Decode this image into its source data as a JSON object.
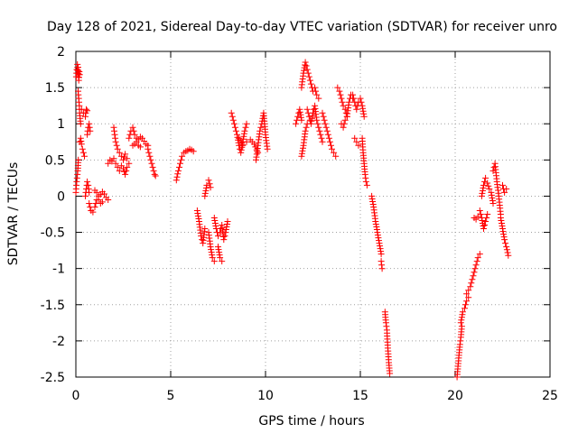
{
  "chart_data": {
    "type": "scatter",
    "title": "Day 128 of 2021, Sidereal Day-to-day VTEC variation (SDTVAR) for receiver unro",
    "xlabel": "GPS time / hours",
    "ylabel": "SDTVAR / TECUs",
    "xlim": [
      0,
      25
    ],
    "ylim": [
      -2.5,
      2
    ],
    "xticks": [
      "0",
      "5",
      "10",
      "15",
      "20",
      "25"
    ],
    "yticks": [
      "2",
      "1.5",
      "1",
      "0.5",
      "0",
      "-0.5",
      "-1",
      "-1.5",
      "-2",
      "-2.5"
    ],
    "grid": true,
    "marker": "+",
    "color": "#ff0000",
    "series": [
      {
        "name": "SDTVAR",
        "segments": [
          {
            "x": [
              0.02,
              0.05,
              0.08,
              0.1,
              0.12,
              0.15,
              0.18,
              0.2
            ],
            "y": [
              1.65,
              1.75,
              1.82,
              1.7,
              1.78,
              1.6,
              1.72,
              1.68
            ]
          },
          {
            "x": [
              0.0,
              0.03,
              0.06,
              0.1,
              0.13
            ],
            "y": [
              0.05,
              0.15,
              0.25,
              0.35,
              0.5
            ]
          },
          {
            "x": [
              0.12,
              0.15,
              0.18,
              0.2,
              0.25
            ],
            "y": [
              1.45,
              1.35,
              1.25,
              1.15,
              1.0
            ]
          },
          {
            "x": [
              0.2,
              0.25,
              0.3,
              0.35,
              0.4,
              0.45
            ],
            "y": [
              0.75,
              0.8,
              0.72,
              0.65,
              0.6,
              0.55
            ]
          },
          {
            "x": [
              0.3,
              0.4,
              0.5,
              0.55,
              0.6
            ],
            "y": [
              1.2,
              1.15,
              1.1,
              1.2,
              1.18
            ]
          },
          {
            "x": [
              0.5,
              0.55,
              0.6,
              0.65,
              0.7
            ],
            "y": [
              0.0,
              0.1,
              0.2,
              0.15,
              0.05
            ]
          },
          {
            "x": [
              0.6,
              0.65,
              0.7,
              0.75
            ],
            "y": [
              0.85,
              0.95,
              1.0,
              0.9
            ]
          },
          {
            "x": [
              0.7,
              0.8,
              0.9,
              1.0,
              1.1
            ],
            "y": [
              -0.1,
              -0.2,
              -0.22,
              -0.15,
              -0.05
            ]
          },
          {
            "x": [
              1.0,
              1.1,
              1.2,
              1.3,
              1.4,
              1.5,
              1.6,
              1.7
            ],
            "y": [
              0.08,
              0.05,
              0.0,
              0.02,
              0.06,
              0.03,
              -0.02,
              -0.05
            ]
          },
          {
            "x": [
              1.2,
              1.3,
              1.4
            ],
            "y": [
              -0.05,
              -0.1,
              -0.08
            ]
          },
          {
            "x": [
              1.7,
              1.8,
              1.9,
              2.0
            ],
            "y": [
              0.45,
              0.5,
              0.48,
              0.52
            ]
          },
          {
            "x": [
              2.0,
              2.05,
              2.1,
              2.15,
              2.2
            ],
            "y": [
              0.95,
              0.85,
              0.75,
              0.7,
              0.65
            ]
          },
          {
            "x": [
              2.1,
              2.2,
              2.3,
              2.4,
              2.5,
              2.6,
              2.7,
              2.8
            ],
            "y": [
              0.45,
              0.4,
              0.35,
              0.42,
              0.38,
              0.3,
              0.4,
              0.45
            ]
          },
          {
            "x": [
              2.3,
              2.4,
              2.5,
              2.6,
              2.7
            ],
            "y": [
              0.6,
              0.55,
              0.5,
              0.58,
              0.52
            ]
          },
          {
            "x": [
              2.8,
              2.9,
              3.0,
              3.1,
              3.2,
              3.3,
              3.4,
              3.5,
              3.6,
              3.7,
              3.8
            ],
            "y": [
              0.8,
              0.9,
              0.95,
              0.85,
              0.8,
              0.78,
              0.82,
              0.8,
              0.76,
              0.72,
              0.7
            ]
          },
          {
            "x": [
              3.0,
              3.1,
              3.2,
              3.3,
              3.4
            ],
            "y": [
              0.7,
              0.72,
              0.75,
              0.7,
              0.68
            ]
          },
          {
            "x": [
              3.8,
              3.85,
              3.9,
              3.95,
              4.0,
              4.05,
              4.1,
              4.15,
              4.2
            ],
            "y": [
              0.65,
              0.6,
              0.55,
              0.5,
              0.45,
              0.4,
              0.35,
              0.3,
              0.28
            ]
          },
          {
            "x": [
              5.3,
              5.4,
              5.5,
              5.6,
              5.7,
              5.8,
              5.9,
              6.0,
              6.1,
              6.2
            ],
            "y": [
              0.22,
              0.35,
              0.45,
              0.55,
              0.6,
              0.62,
              0.63,
              0.65,
              0.64,
              0.62
            ]
          },
          {
            "x": [
              6.4,
              6.5,
              6.6,
              6.7,
              6.8
            ],
            "y": [
              -0.2,
              -0.35,
              -0.55,
              -0.65,
              -0.45
            ]
          },
          {
            "x": [
              6.8,
              6.9,
              7.0,
              7.1
            ],
            "y": [
              0.0,
              0.15,
              0.22,
              0.12
            ]
          },
          {
            "x": [
              7.0,
              7.1,
              7.2,
              7.3
            ],
            "y": [
              -0.5,
              -0.7,
              -0.85,
              -0.9
            ]
          },
          {
            "x": [
              7.3,
              7.4,
              7.5,
              7.6,
              7.7,
              7.8,
              7.9,
              8.0
            ],
            "y": [
              -0.3,
              -0.45,
              -0.55,
              -0.5,
              -0.4,
              -0.6,
              -0.5,
              -0.35
            ]
          },
          {
            "x": [
              7.5,
              7.6,
              7.7
            ],
            "y": [
              -0.7,
              -0.85,
              -0.9
            ]
          },
          {
            "x": [
              8.2,
              8.3,
              8.4,
              8.5,
              8.6,
              8.7,
              8.8,
              8.9,
              9.0
            ],
            "y": [
              1.15,
              1.05,
              0.95,
              0.85,
              0.7,
              0.6,
              0.75,
              0.9,
              1.0
            ]
          },
          {
            "x": [
              8.6,
              8.8,
              9.0,
              9.2,
              9.4,
              9.6
            ],
            "y": [
              0.8,
              0.7,
              0.75,
              0.78,
              0.72,
              0.6
            ]
          },
          {
            "x": [
              9.5,
              9.6,
              9.7,
              9.8,
              9.9,
              10.0,
              10.1
            ],
            "y": [
              0.5,
              0.7,
              0.9,
              1.0,
              1.15,
              0.85,
              0.65
            ]
          },
          {
            "x": [
              11.6,
              11.7,
              11.8,
              11.9
            ],
            "y": [
              1.0,
              1.1,
              1.2,
              1.05
            ]
          },
          {
            "x": [
              11.9,
              12.0,
              12.1,
              12.2,
              12.3,
              12.4,
              12.5,
              12.6,
              12.7,
              12.8
            ],
            "y": [
              1.5,
              1.7,
              1.85,
              1.75,
              1.65,
              1.55,
              1.45,
              1.5,
              1.4,
              1.35
            ]
          },
          {
            "x": [
              12.2,
              12.3,
              12.4,
              12.5,
              12.6,
              12.7,
              12.8,
              12.9,
              13.0
            ],
            "y": [
              1.2,
              1.1,
              1.0,
              1.15,
              1.25,
              1.05,
              0.95,
              0.85,
              0.75
            ]
          },
          {
            "x": [
              11.9,
              12.0,
              12.1,
              12.2
            ],
            "y": [
              0.55,
              0.7,
              0.9,
              1.0
            ]
          },
          {
            "x": [
              13.0,
              13.1,
              13.2,
              13.3,
              13.4,
              13.5,
              13.6,
              13.7
            ],
            "y": [
              1.15,
              1.05,
              0.95,
              0.85,
              0.75,
              0.65,
              0.6,
              0.55
            ]
          },
          {
            "x": [
              13.8,
              13.9,
              14.0,
              14.1,
              14.2,
              14.3,
              14.4,
              14.5,
              14.6
            ],
            "y": [
              1.5,
              1.45,
              1.35,
              1.25,
              1.2,
              1.1,
              1.3,
              1.4,
              1.35
            ]
          },
          {
            "x": [
              14.0,
              14.1,
              14.2,
              14.3
            ],
            "y": [
              1.0,
              0.95,
              1.05,
              1.1
            ]
          },
          {
            "x": [
              14.6,
              14.7,
              14.8,
              14.9,
              15.0,
              15.1,
              15.2
            ],
            "y": [
              1.4,
              1.3,
              1.2,
              1.3,
              1.35,
              1.25,
              1.1
            ]
          },
          {
            "x": [
              14.7,
              14.8,
              14.9
            ],
            "y": [
              0.8,
              0.75,
              0.7
            ]
          },
          {
            "x": [
              15.1,
              15.15,
              15.2,
              15.25,
              15.3,
              15.35
            ],
            "y": [
              0.8,
              0.6,
              0.45,
              0.3,
              0.2,
              0.15
            ]
          },
          {
            "x": [
              15.6,
              15.7,
              15.8,
              15.9,
              16.0,
              16.1
            ],
            "y": [
              0.0,
              -0.15,
              -0.35,
              -0.5,
              -0.65,
              -0.8
            ]
          },
          {
            "x": [
              16.1,
              16.15
            ],
            "y": [
              -0.9,
              -1.0
            ]
          },
          {
            "x": [
              16.3,
              16.35,
              16.4,
              16.45,
              16.5,
              16.55
            ],
            "y": [
              -1.6,
              -1.75,
              -1.85,
              -2.1,
              -2.3,
              -2.45
            ]
          },
          {
            "x": [
              20.1,
              20.15,
              20.2,
              20.25,
              20.3,
              20.35
            ],
            "y": [
              -2.5,
              -2.35,
              -2.2,
              -2.05,
              -1.95,
              -1.8
            ]
          },
          {
            "x": [
              20.3,
              20.4,
              20.5,
              20.6,
              20.7
            ],
            "y": [
              -1.75,
              -1.6,
              -1.55,
              -1.45,
              -1.4
            ]
          },
          {
            "x": [
              20.6,
              20.7,
              20.8,
              20.9,
              21.0,
              21.1,
              21.2,
              21.3
            ],
            "y": [
              -1.35,
              -1.3,
              -1.25,
              -1.15,
              -1.05,
              -0.95,
              -0.85,
              -0.8
            ]
          },
          {
            "x": [
              21.0,
              21.1,
              21.2
            ],
            "y": [
              -0.3,
              -0.32,
              -0.28
            ]
          },
          {
            "x": [
              21.4,
              21.5,
              21.6,
              21.7,
              21.8,
              21.9,
              22.0
            ],
            "y": [
              0.0,
              0.15,
              0.25,
              0.18,
              0.1,
              0.05,
              -0.1
            ]
          },
          {
            "x": [
              21.3,
              21.4,
              21.5,
              21.6,
              21.7
            ],
            "y": [
              -0.2,
              -0.3,
              -0.45,
              -0.35,
              -0.25
            ]
          },
          {
            "x": [
              22.0,
              22.1,
              22.2,
              22.3,
              22.4
            ],
            "y": [
              0.35,
              0.45,
              0.2,
              0.0,
              -0.25
            ]
          },
          {
            "x": [
              22.4,
              22.5,
              22.6,
              22.7,
              22.8
            ],
            "y": [
              -0.3,
              -0.45,
              -0.6,
              -0.7,
              -0.82
            ]
          },
          {
            "x": [
              22.5,
              22.6,
              22.7
            ],
            "y": [
              0.15,
              0.05,
              0.1
            ]
          }
        ]
      }
    ]
  }
}
